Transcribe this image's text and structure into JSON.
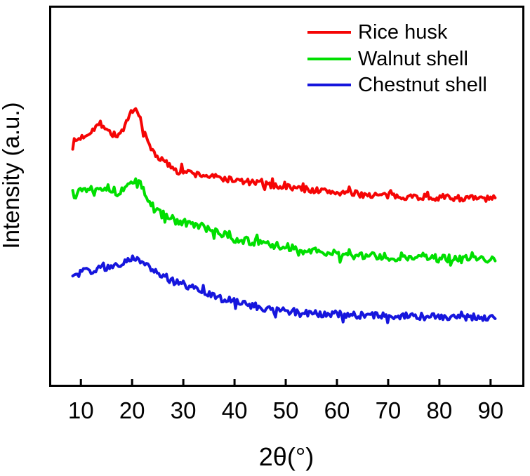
{
  "chart_data": {
    "type": "line",
    "title": "",
    "x_axis": {
      "label": "2θ(°)",
      "ticks": [
        "10",
        "20",
        "30",
        "40",
        "50",
        "60",
        "70",
        "80",
        "90"
      ],
      "tick_values": [
        10,
        20,
        30,
        40,
        50,
        60,
        70,
        80,
        90
      ],
      "range": [
        3.8,
        96.6
      ],
      "data_range": [
        8.4,
        91
      ]
    },
    "y_axis": {
      "label": "Intensity (a.u.)",
      "ticks": [],
      "range": [
        0,
        100
      ]
    },
    "legend": {
      "position": "top-right"
    },
    "colors": {
      "background": "#ffffff",
      "frame": "#000000",
      "text": "#000000"
    },
    "series": [
      {
        "name": "Rice husk",
        "color": "#f50505",
        "noise": 0.85,
        "seed": 7,
        "keypoints": [
          [
            8.4,
            64.0
          ],
          [
            10,
            65.3
          ],
          [
            11.5,
            66.5
          ],
          [
            13,
            68.4
          ],
          [
            14.5,
            68.6
          ],
          [
            16,
            66.2
          ],
          [
            17.5,
            66.0
          ],
          [
            19,
            69.3
          ],
          [
            20,
            71.8
          ],
          [
            20.8,
            72.6
          ],
          [
            21.6,
            70.3
          ],
          [
            22.5,
            66.0
          ],
          [
            23.5,
            62.8
          ],
          [
            25,
            60.3
          ],
          [
            27,
            58.2
          ],
          [
            29,
            56.9
          ],
          [
            32,
            55.8
          ],
          [
            35,
            55.2
          ],
          [
            40,
            54.1
          ],
          [
            45,
            53.2
          ],
          [
            50,
            52.4
          ],
          [
            55,
            51.6
          ],
          [
            60,
            50.9
          ],
          [
            65,
            50.4
          ],
          [
            70,
            50.0
          ],
          [
            75,
            49.8
          ],
          [
            80,
            49.6
          ],
          [
            85,
            49.4
          ],
          [
            91,
            49.2
          ]
        ]
      },
      {
        "name": "Walnut shell",
        "color": "#00df00",
        "noise": 1.05,
        "seed": 13,
        "keypoints": [
          [
            8.4,
            51.3
          ],
          [
            10,
            51.7
          ],
          [
            12,
            52.0
          ],
          [
            14,
            52.5
          ],
          [
            15.5,
            52.0
          ],
          [
            17,
            50.9
          ],
          [
            18.5,
            51.7
          ],
          [
            19.8,
            53.6
          ],
          [
            20.8,
            54.3
          ],
          [
            21.8,
            52.6
          ],
          [
            23,
            49.0
          ],
          [
            24.5,
            46.3
          ],
          [
            26,
            45.0
          ],
          [
            28,
            43.8
          ],
          [
            30,
            42.9
          ],
          [
            33,
            42.2
          ],
          [
            36,
            40.5
          ],
          [
            40,
            38.8
          ],
          [
            45,
            37.5
          ],
          [
            50,
            36.5
          ],
          [
            55,
            35.4
          ],
          [
            60,
            34.7
          ],
          [
            65,
            34.3
          ],
          [
            70,
            33.9
          ],
          [
            75,
            33.8
          ],
          [
            80,
            33.6
          ],
          [
            85,
            33.4
          ],
          [
            91,
            33.2
          ]
        ]
      },
      {
        "name": "Chestnut shell",
        "color": "#1616dd",
        "noise": 0.95,
        "seed": 29,
        "keypoints": [
          [
            8.4,
            29.5
          ],
          [
            10,
            29.9
          ],
          [
            12,
            30.4
          ],
          [
            14,
            31.0
          ],
          [
            16,
            31.5
          ],
          [
            18,
            32.2
          ],
          [
            19.5,
            33.0
          ],
          [
            20.8,
            33.9
          ],
          [
            22,
            32.4
          ],
          [
            24,
            30.5
          ],
          [
            26,
            29.0
          ],
          [
            28,
            27.7
          ],
          [
            31,
            26.2
          ],
          [
            35,
            24.0
          ],
          [
            40,
            22.1
          ],
          [
            45,
            20.7
          ],
          [
            50,
            19.7
          ],
          [
            55,
            19.2
          ],
          [
            60,
            18.8
          ],
          [
            65,
            18.6
          ],
          [
            70,
            18.5
          ],
          [
            75,
            18.3
          ],
          [
            80,
            18.3
          ],
          [
            85,
            18.2
          ],
          [
            91,
            18.1
          ]
        ]
      }
    ]
  }
}
